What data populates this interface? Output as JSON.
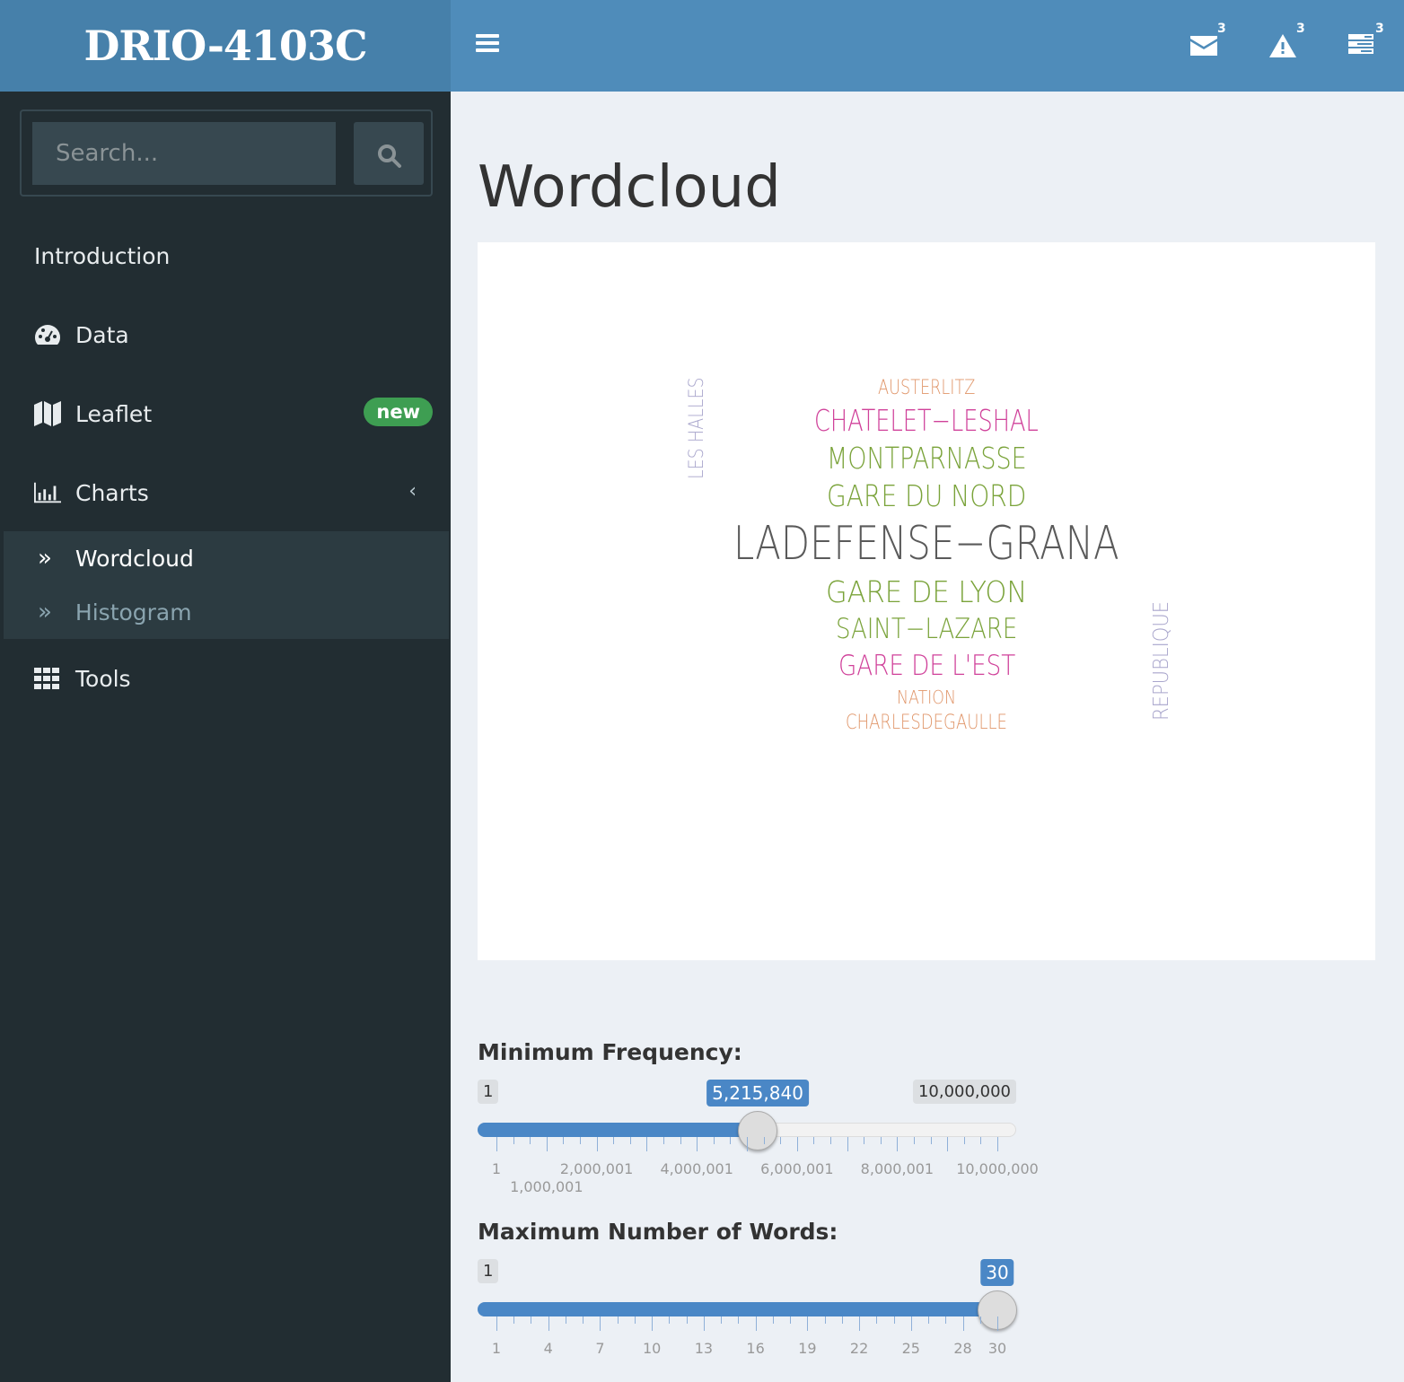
{
  "header": {
    "logo": "DRIO-4103C",
    "badges": {
      "messages": "3",
      "notifications": "3",
      "tasks": "3"
    }
  },
  "sidebar": {
    "search_placeholder": "Search...",
    "items": [
      {
        "label": "Introduction"
      },
      {
        "label": "Data",
        "icon": "dashboard-icon"
      },
      {
        "label": "Leaflet",
        "icon": "map-icon",
        "badge": "new"
      },
      {
        "label": "Charts",
        "icon": "bar-chart-icon"
      },
      {
        "label": "Tools",
        "icon": "th-icon"
      }
    ],
    "submenu": [
      {
        "label": "Wordcloud",
        "active": true
      },
      {
        "label": "Histogram"
      }
    ]
  },
  "main": {
    "title": "Wordcloud",
    "wordcloud": [
      {
        "text": "LADEFENSE−GRANA",
        "color": "#5a5a5a"
      },
      {
        "text": "CHATELET−LESHAL",
        "color": "#d0419a"
      },
      {
        "text": "MONTPARNASSE",
        "color": "#7aa33a"
      },
      {
        "text": "GARE DU NORD",
        "color": "#7aa33a"
      },
      {
        "text": "GARE DE LYON",
        "color": "#7aa33a"
      },
      {
        "text": "SAINT−LAZARE",
        "color": "#7aa33a"
      },
      {
        "text": "GARE DE L'EST",
        "color": "#d0419a"
      },
      {
        "text": "AUSTERLITZ",
        "color": "#e0966a"
      },
      {
        "text": "NATION",
        "color": "#e0966a"
      },
      {
        "text": "CHARLESDEGAULLE",
        "color": "#e0966a"
      },
      {
        "text": "LES HALLES",
        "color": "#a9a6cc"
      },
      {
        "text": "REPUBLIQUE",
        "color": "#a9a6cc"
      }
    ],
    "min_freq": {
      "label": "Minimum Frequency:",
      "min": "1",
      "max": "10,000,000",
      "value": "5,215,840",
      "value_num": 5215840,
      "min_num": 1,
      "max_num": 10000000,
      "ticks": [
        "1",
        "1,000,001",
        "2,000,001",
        "4,000,001",
        "6,000,001",
        "8,000,001",
        "10,000,000"
      ]
    },
    "max_words": {
      "label": "Maximum Number of Words:",
      "min": "1",
      "value": "30",
      "value_num": 30,
      "min_num": 1,
      "max_num": 30,
      "ticks": [
        "1",
        "4",
        "7",
        "10",
        "13",
        "16",
        "19",
        "22",
        "25",
        "28",
        "30"
      ]
    }
  },
  "colors": {
    "accent": "#4a87c6",
    "header": "#4f8cba",
    "sidebar": "#222d32",
    "badge_green": "#3e9e52"
  }
}
